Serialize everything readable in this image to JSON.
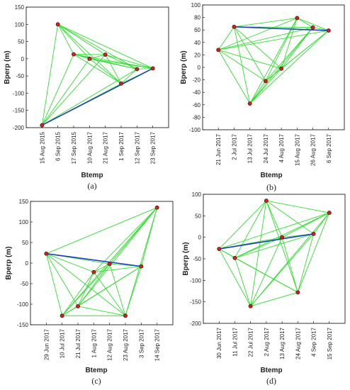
{
  "chart_data": [
    {
      "type": "scatter",
      "label": "(a)",
      "xlabel": "Btemp",
      "ylabel": "Bperp (m)",
      "ylim": [
        -200,
        150
      ],
      "yticks": [
        "150",
        "100",
        "50",
        "0",
        "-50",
        "-100",
        "-150",
        "-200"
      ],
      "categories": [
        "15 Aug 2015",
        "6 Sep 2015",
        "17 Sep 2015",
        "10 Aug 2017",
        "21 Aug 2017",
        "1 Sep 2017",
        "12 Sep 2017",
        "23 Sep 2017"
      ],
      "points": [
        {
          "x": "15 Aug 2015",
          "y": -193
        },
        {
          "x": "6 Sep 2015",
          "y": 100
        },
        {
          "x": "17 Sep 2015",
          "y": 13
        },
        {
          "x": "10 Aug 2017",
          "y": 0
        },
        {
          "x": "21 Aug 2017",
          "y": 12
        },
        {
          "x": "1 Sep 2017",
          "y": -72
        },
        {
          "x": "12 Sep 2017",
          "y": -30
        },
        {
          "x": "23 Sep 2017",
          "y": -28
        }
      ],
      "links": [
        [
          0,
          1
        ],
        [
          0,
          2
        ],
        [
          0,
          3
        ],
        [
          0,
          4
        ],
        [
          0,
          5
        ],
        [
          0,
          6
        ],
        [
          1,
          2
        ],
        [
          1,
          3
        ],
        [
          1,
          4
        ],
        [
          1,
          5
        ],
        [
          1,
          6
        ],
        [
          1,
          7
        ],
        [
          2,
          3
        ],
        [
          2,
          4
        ],
        [
          2,
          5
        ],
        [
          2,
          6
        ],
        [
          2,
          7
        ],
        [
          3,
          4
        ],
        [
          3,
          5
        ],
        [
          3,
          6
        ],
        [
          3,
          7
        ],
        [
          4,
          5
        ],
        [
          4,
          6
        ],
        [
          4,
          7
        ],
        [
          5,
          6
        ],
        [
          5,
          7
        ],
        [
          6,
          7
        ]
      ],
      "master_link": [
        0,
        7
      ]
    },
    {
      "type": "scatter",
      "label": "(b)",
      "xlabel": "Btemp",
      "ylabel": "Bperp (m)",
      "ylim": [
        -100,
        100
      ],
      "yticks": [
        "100",
        "80",
        "60",
        "40",
        "20",
        "0",
        "-20",
        "-40",
        "-60",
        "-80",
        "-100"
      ],
      "categories": [
        "21 Jun 2017",
        "2 Jul 2017",
        "13 Jul 2017",
        "24 Jul 2017",
        "4 Aug 2017",
        "15 Aug 2017",
        "26 Aug 2017",
        "6 Sep 2017"
      ],
      "points": [
        {
          "x": "21 Jun 2017",
          "y": 28
        },
        {
          "x": "2 Jul 2017",
          "y": 65
        },
        {
          "x": "13 Jul 2017",
          "y": -58
        },
        {
          "x": "24 Jul 2017",
          "y": -22
        },
        {
          "x": "4 Aug 2017",
          "y": -2
        },
        {
          "x": "15 Aug 2017",
          "y": 79
        },
        {
          "x": "26 Aug 2017",
          "y": 64
        },
        {
          "x": "6 Sep 2017",
          "y": 59
        }
      ],
      "links": [
        [
          0,
          1
        ],
        [
          0,
          2
        ],
        [
          0,
          3
        ],
        [
          0,
          4
        ],
        [
          0,
          5
        ],
        [
          0,
          6
        ],
        [
          0,
          7
        ],
        [
          1,
          2
        ],
        [
          1,
          3
        ],
        [
          1,
          4
        ],
        [
          1,
          5
        ],
        [
          1,
          6
        ],
        [
          2,
          3
        ],
        [
          2,
          4
        ],
        [
          2,
          5
        ],
        [
          2,
          6
        ],
        [
          2,
          7
        ],
        [
          3,
          4
        ],
        [
          3,
          5
        ],
        [
          3,
          6
        ],
        [
          3,
          7
        ],
        [
          4,
          5
        ],
        [
          4,
          6
        ],
        [
          4,
          7
        ],
        [
          5,
          6
        ],
        [
          5,
          7
        ],
        [
          6,
          7
        ]
      ],
      "master_link": [
        1,
        7
      ]
    },
    {
      "type": "scatter",
      "label": "(c)",
      "xlabel": "Btemp",
      "ylabel": "Bperp (m)",
      "ylim": [
        -150,
        150
      ],
      "yticks": [
        "150",
        "100",
        "50",
        "0",
        "-50",
        "-100",
        "-150"
      ],
      "categories": [
        "29 Jun 2017",
        "10 Jul 2017",
        "21 Jul 2017",
        "1 Aug 2017",
        "12 Aug 2017",
        "23 Aug 2017",
        "3 Sep 2017",
        "14 Sep 2017"
      ],
      "points": [
        {
          "x": "29 Jun 2017",
          "y": 23
        },
        {
          "x": "10 Jul 2017",
          "y": -128
        },
        {
          "x": "21 Jul 2017",
          "y": -105
        },
        {
          "x": "1 Aug 2017",
          "y": -22
        },
        {
          "x": "12 Aug 2017",
          "y": -2
        },
        {
          "x": "23 Aug 2017",
          "y": -128
        },
        {
          "x": "3 Sep 2017",
          "y": -8
        },
        {
          "x": "14 Sep 2017",
          "y": 135
        }
      ],
      "links": [
        [
          0,
          1
        ],
        [
          0,
          2
        ],
        [
          0,
          3
        ],
        [
          0,
          4
        ],
        [
          0,
          5
        ],
        [
          0,
          7
        ],
        [
          1,
          2
        ],
        [
          1,
          3
        ],
        [
          1,
          4
        ],
        [
          1,
          5
        ],
        [
          1,
          6
        ],
        [
          1,
          7
        ],
        [
          2,
          3
        ],
        [
          2,
          4
        ],
        [
          2,
          5
        ],
        [
          2,
          6
        ],
        [
          2,
          7
        ],
        [
          3,
          4
        ],
        [
          3,
          5
        ],
        [
          3,
          6
        ],
        [
          3,
          7
        ],
        [
          4,
          5
        ],
        [
          4,
          6
        ],
        [
          4,
          7
        ],
        [
          5,
          6
        ],
        [
          5,
          7
        ],
        [
          6,
          7
        ]
      ],
      "master_link": [
        0,
        6
      ]
    },
    {
      "type": "scatter",
      "label": "(d)",
      "xlabel": "Btemp",
      "ylabel": "Bperp (m)",
      "ylim": [
        -200,
        100
      ],
      "yticks": [
        "100",
        "50",
        "0",
        "-50",
        "-100",
        "-150",
        "-200"
      ],
      "categories": [
        "30 Jun 2017",
        "11 Jul 2017",
        "22 Jul 2017",
        "2 Aug 2017",
        "13 Aug 2017",
        "24 Aug 2017",
        "4 Sep 2017",
        "15 Sep 2017"
      ],
      "points": [
        {
          "x": "30 Jun 2017",
          "y": -27
        },
        {
          "x": "11 Jul 2017",
          "y": -48
        },
        {
          "x": "22 Jul 2017",
          "y": -160
        },
        {
          "x": "2 Aug 2017",
          "y": 85
        },
        {
          "x": "13 Aug 2017",
          "y": 0
        },
        {
          "x": "24 Aug 2017",
          "y": -128
        },
        {
          "x": "4 Sep 2017",
          "y": 8
        },
        {
          "x": "15 Sep 2017",
          "y": 57
        }
      ],
      "links": [
        [
          0,
          1
        ],
        [
          0,
          2
        ],
        [
          0,
          3
        ],
        [
          0,
          4
        ],
        [
          0,
          5
        ],
        [
          0,
          7
        ],
        [
          1,
          2
        ],
        [
          1,
          3
        ],
        [
          1,
          4
        ],
        [
          1,
          5
        ],
        [
          1,
          6
        ],
        [
          1,
          7
        ],
        [
          2,
          3
        ],
        [
          2,
          4
        ],
        [
          2,
          5
        ],
        [
          2,
          6
        ],
        [
          2,
          7
        ],
        [
          3,
          4
        ],
        [
          3,
          5
        ],
        [
          3,
          6
        ],
        [
          3,
          7
        ],
        [
          4,
          5
        ],
        [
          4,
          6
        ],
        [
          4,
          7
        ],
        [
          5,
          6
        ],
        [
          5,
          7
        ],
        [
          6,
          7
        ]
      ],
      "master_link": [
        0,
        6
      ]
    }
  ],
  "colors": {
    "link": "#33dd33",
    "master_link": "#1f3fbf",
    "point_fill": "#cc2222",
    "point_edge": "#551111",
    "axis": "#000000"
  }
}
